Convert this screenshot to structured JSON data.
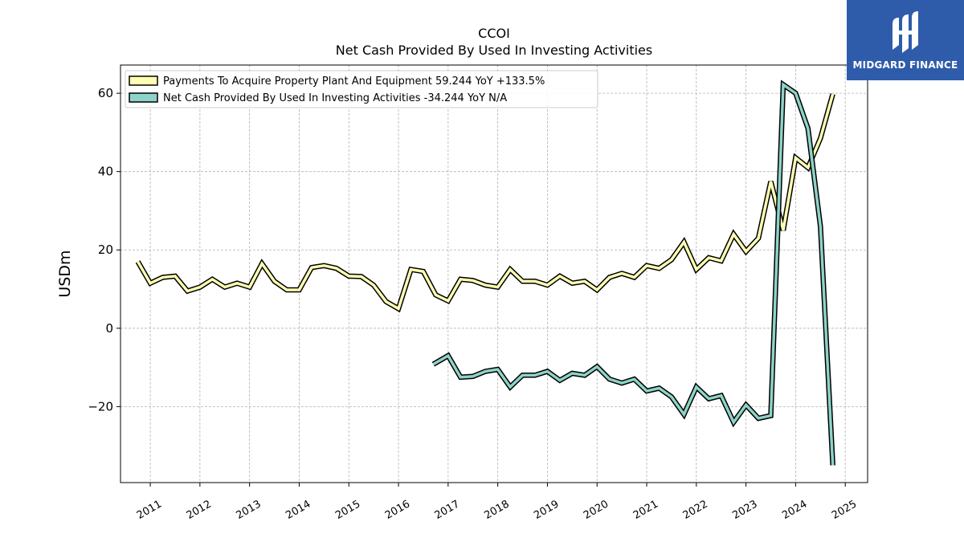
{
  "chart_data": {
    "type": "line",
    "title": "CCOI",
    "subtitle": "Net Cash Provided By Used In Investing Activities",
    "ylabel": "USDm",
    "xlabel": "",
    "ylim": [
      -39.4,
      67.2
    ],
    "xlim": [
      2010.4,
      2025.45
    ],
    "yticks": [
      -20,
      0,
      20,
      40,
      60
    ],
    "ytick_labels": [
      "−20",
      "0",
      "20",
      "40",
      "60"
    ],
    "xticks": [
      2011,
      2012,
      2013,
      2014,
      2015,
      2016,
      2017,
      2018,
      2019,
      2020,
      2021,
      2022,
      2023,
      2024,
      2025
    ],
    "xtick_labels": [
      "2011",
      "2012",
      "2013",
      "2014",
      "2015",
      "2016",
      "2017",
      "2018",
      "2019",
      "2020",
      "2021",
      "2022",
      "2023",
      "2024",
      "2025"
    ],
    "grid": true,
    "legend_position": "top-left",
    "series": [
      {
        "name": "Payments To Acquire Property Plant And Equipment  59.244 YoY +133.5%",
        "color": "#ffffb3",
        "x": [
          2010.75,
          2011.0,
          2011.25,
          2011.5,
          2011.75,
          2012.0,
          2012.25,
          2012.5,
          2012.75,
          2013.0,
          2013.25,
          2013.5,
          2013.75,
          2014.0,
          2014.25,
          2014.5,
          2014.75,
          2015.0,
          2015.25,
          2015.5,
          2015.75,
          2016.0,
          2016.25,
          2016.5,
          2016.75,
          2017.0,
          2017.25,
          2017.5,
          2017.75,
          2018.0,
          2018.25,
          2018.5,
          2018.75,
          2019.0,
          2019.25,
          2019.5,
          2019.75,
          2020.0,
          2020.25,
          2020.5,
          2020.75,
          2021.0,
          2021.25,
          2021.5,
          2021.75,
          2022.0,
          2022.25,
          2022.5,
          2022.75,
          2023.0,
          2023.25,
          2023.5,
          2023.75,
          2024.0,
          2024.25,
          2024.5,
          2024.75
        ],
        "y": [
          17.0,
          11.5,
          13.0,
          13.3,
          9.5,
          10.5,
          12.5,
          10.5,
          11.5,
          10.5,
          16.5,
          12.0,
          9.8,
          9.8,
          15.5,
          16.0,
          15.3,
          13.3,
          13.2,
          11.0,
          6.8,
          5.0,
          15.0,
          14.5,
          8.5,
          7.0,
          12.5,
          12.2,
          11.0,
          10.5,
          15.0,
          12.0,
          12.0,
          11.0,
          13.3,
          11.5,
          12.0,
          9.8,
          13.0,
          14.0,
          13.0,
          16.0,
          15.3,
          17.5,
          22.0,
          15.0,
          18.0,
          17.2,
          24.0,
          19.6,
          23.0,
          37.5,
          25.0,
          43.5,
          41.0,
          48.5,
          59.8
        ]
      },
      {
        "name": "Net Cash Provided By Used In Investing Activities  -34.244 YoY N/A",
        "color": "#8dd3c7",
        "x": [
          2016.7,
          2017.0,
          2017.25,
          2017.5,
          2017.75,
          2018.0,
          2018.25,
          2018.5,
          2018.75,
          2019.0,
          2019.25,
          2019.5,
          2019.75,
          2020.0,
          2020.25,
          2020.5,
          2020.75,
          2021.0,
          2021.25,
          2021.5,
          2021.75,
          2022.0,
          2022.25,
          2022.5,
          2022.75,
          2023.0,
          2023.25,
          2023.5,
          2023.75,
          2024.0,
          2024.25,
          2024.5,
          2024.75
        ],
        "y": [
          -9.2,
          -7.0,
          -12.5,
          -12.3,
          -11.0,
          -10.5,
          -15.0,
          -12.0,
          -12.0,
          -11.0,
          -13.3,
          -11.5,
          -12.0,
          -9.8,
          -13.0,
          -14.0,
          -13.0,
          -16.0,
          -15.3,
          -17.5,
          -22.0,
          -15.0,
          -18.0,
          -17.2,
          -24.0,
          -19.6,
          -23.0,
          -22.3,
          62.2,
          60.0,
          51.0,
          26.0,
          -35.0
        ]
      }
    ]
  },
  "logo": {
    "text": "MIDGARD FINANCE"
  }
}
